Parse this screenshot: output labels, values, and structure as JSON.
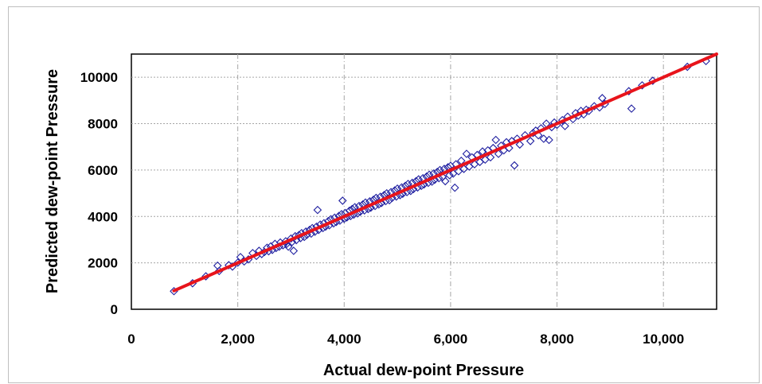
{
  "chart_data": {
    "type": "scatter",
    "title": "",
    "xlabel": "Actual dew-point Pressure",
    "ylabel": "Predicted  dew-point Pressure",
    "xlim": [
      0,
      11000
    ],
    "ylim": [
      0,
      11000
    ],
    "x_ticks": [
      0,
      2000,
      4000,
      6000,
      8000,
      10000
    ],
    "x_tick_labels": [
      "0",
      "2,000",
      "4,000",
      "6,000",
      "8,000",
      "10,000"
    ],
    "y_ticks": [
      0,
      2000,
      4000,
      6000,
      8000,
      10000
    ],
    "y_tick_labels": [
      "0",
      "2000",
      "4000",
      "6000",
      "8000",
      "10000"
    ],
    "grid": true,
    "legend": "none",
    "colors": {
      "points": "#1f1fa0",
      "fit_line": "#e8141b",
      "grid": "#a6a6a6"
    },
    "series": [
      {
        "marker": "diamond-open",
        "points": [
          [
            800,
            780
          ],
          [
            1150,
            1120
          ],
          [
            1400,
            1420
          ],
          [
            1620,
            1880
          ],
          [
            1650,
            1650
          ],
          [
            1830,
            1900
          ],
          [
            1900,
            1840
          ],
          [
            2000,
            2010
          ],
          [
            2050,
            2250
          ],
          [
            2120,
            2060
          ],
          [
            2200,
            2150
          ],
          [
            2280,
            2420
          ],
          [
            2350,
            2300
          ],
          [
            2400,
            2520
          ],
          [
            2450,
            2380
          ],
          [
            2500,
            2470
          ],
          [
            2550,
            2650
          ],
          [
            2580,
            2500
          ],
          [
            2620,
            2710
          ],
          [
            2650,
            2560
          ],
          [
            2700,
            2820
          ],
          [
            2720,
            2640
          ],
          [
            2780,
            2700
          ],
          [
            2800,
            2880
          ],
          [
            2850,
            2760
          ],
          [
            2900,
            2930
          ],
          [
            2920,
            2820
          ],
          [
            2950,
            2700
          ],
          [
            3000,
            3050
          ],
          [
            3020,
            2900
          ],
          [
            3050,
            2520
          ],
          [
            3080,
            3150
          ],
          [
            3100,
            2980
          ],
          [
            3150,
            3200
          ],
          [
            3180,
            3070
          ],
          [
            3200,
            3280
          ],
          [
            3250,
            3120
          ],
          [
            3280,
            3350
          ],
          [
            3300,
            3210
          ],
          [
            3350,
            3420
          ],
          [
            3380,
            3260
          ],
          [
            3400,
            3500
          ],
          [
            3450,
            3340
          ],
          [
            3480,
            3560
          ],
          [
            3500,
            4280
          ],
          [
            3520,
            3420
          ],
          [
            3550,
            3650
          ],
          [
            3600,
            3500
          ],
          [
            3620,
            3710
          ],
          [
            3650,
            3560
          ],
          [
            3700,
            3800
          ],
          [
            3720,
            3620
          ],
          [
            3750,
            3880
          ],
          [
            3800,
            3700
          ],
          [
            3820,
            3950
          ],
          [
            3850,
            3760
          ],
          [
            3900,
            4020
          ],
          [
            3920,
            3820
          ],
          [
            3950,
            4100
          ],
          [
            3970,
            4680
          ],
          [
            4000,
            3900
          ],
          [
            4020,
            4150
          ],
          [
            4050,
            3960
          ],
          [
            4100,
            4250
          ],
          [
            4120,
            4020
          ],
          [
            4150,
            4320
          ],
          [
            4180,
            4080
          ],
          [
            4200,
            4400
          ],
          [
            4250,
            4130
          ],
          [
            4280,
            4450
          ],
          [
            4300,
            4200
          ],
          [
            4350,
            4520
          ],
          [
            4380,
            4260
          ],
          [
            4400,
            4600
          ],
          [
            4450,
            4320
          ],
          [
            4480,
            4650
          ],
          [
            4500,
            4380
          ],
          [
            4550,
            4720
          ],
          [
            4580,
            4450
          ],
          [
            4600,
            4800
          ],
          [
            4650,
            4520
          ],
          [
            4680,
            4850
          ],
          [
            4700,
            4580
          ],
          [
            4750,
            4920
          ],
          [
            4780,
            4660
          ],
          [
            4800,
            5000
          ],
          [
            4850,
            4700
          ],
          [
            4880,
            5050
          ],
          [
            4900,
            4800
          ],
          [
            4950,
            5120
          ],
          [
            4980,
            4860
          ],
          [
            5000,
            5200
          ],
          [
            5050,
            4920
          ],
          [
            5080,
            5250
          ],
          [
            5100,
            4980
          ],
          [
            5150,
            5320
          ],
          [
            5180,
            5050
          ],
          [
            5200,
            5400
          ],
          [
            5250,
            5100
          ],
          [
            5280,
            5450
          ],
          [
            5300,
            5180
          ],
          [
            5350,
            5520
          ],
          [
            5380,
            5250
          ],
          [
            5400,
            5600
          ],
          [
            5450,
            5320
          ],
          [
            5480,
            5650
          ],
          [
            5500,
            5380
          ],
          [
            5550,
            5720
          ],
          [
            5580,
            5450
          ],
          [
            5600,
            5800
          ],
          [
            5650,
            5500
          ],
          [
            5680,
            5850
          ],
          [
            5700,
            5580
          ],
          [
            5750,
            5920
          ],
          [
            5780,
            5650
          ],
          [
            5800,
            6000
          ],
          [
            5850,
            5700
          ],
          [
            5880,
            6050
          ],
          [
            5900,
            5520
          ],
          [
            5950,
            6120
          ],
          [
            5980,
            5780
          ],
          [
            6000,
            6180
          ],
          [
            6050,
            5850
          ],
          [
            6080,
            5240
          ],
          [
            6100,
            6250
          ],
          [
            6150,
            5950
          ],
          [
            6200,
            6400
          ],
          [
            6250,
            6050
          ],
          [
            6300,
            6700
          ],
          [
            6350,
            6150
          ],
          [
            6400,
            6550
          ],
          [
            6450,
            6250
          ],
          [
            6500,
            6650
          ],
          [
            6550,
            6350
          ],
          [
            6600,
            6800
          ],
          [
            6650,
            6450
          ],
          [
            6700,
            6850
          ],
          [
            6750,
            6550
          ],
          [
            6800,
            6950
          ],
          [
            6850,
            7300
          ],
          [
            6900,
            6700
          ],
          [
            6950,
            7050
          ],
          [
            7000,
            6850
          ],
          [
            7050,
            7200
          ],
          [
            7100,
            6950
          ],
          [
            7150,
            7250
          ],
          [
            7200,
            6200
          ],
          [
            7250,
            7350
          ],
          [
            7300,
            7100
          ],
          [
            7400,
            7500
          ],
          [
            7500,
            7250
          ],
          [
            7550,
            7600
          ],
          [
            7600,
            7700
          ],
          [
            7650,
            7500
          ],
          [
            7700,
            7800
          ],
          [
            7750,
            7350
          ],
          [
            7800,
            8000
          ],
          [
            7850,
            7300
          ],
          [
            7900,
            7850
          ],
          [
            7950,
            8050
          ],
          [
            8000,
            7950
          ],
          [
            8100,
            8150
          ],
          [
            8150,
            7900
          ],
          [
            8200,
            8300
          ],
          [
            8300,
            8200
          ],
          [
            8350,
            8450
          ],
          [
            8400,
            8350
          ],
          [
            8450,
            8550
          ],
          [
            8500,
            8400
          ],
          [
            8550,
            8600
          ],
          [
            8600,
            8550
          ],
          [
            8700,
            8750
          ],
          [
            8800,
            8700
          ],
          [
            8850,
            9100
          ],
          [
            8900,
            8850
          ],
          [
            9350,
            9400
          ],
          [
            9400,
            8650
          ],
          [
            9600,
            9650
          ],
          [
            9800,
            9850
          ],
          [
            10450,
            10450
          ],
          [
            10800,
            10700
          ]
        ]
      }
    ],
    "fit_line": {
      "x": [
        0,
        11000
      ],
      "y": [
        0,
        11000
      ]
    }
  }
}
